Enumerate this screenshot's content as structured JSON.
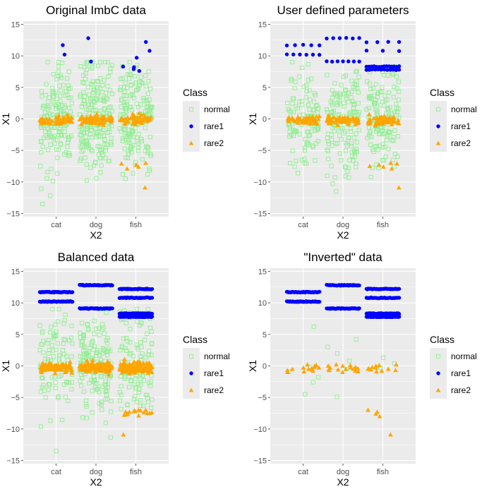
{
  "colors": {
    "normal": "#90ee90",
    "rare1": "#0000ff",
    "rare2": "#ffa500",
    "panel_bg": "#ebebeb",
    "grid": "#ffffff"
  },
  "chart_data": [
    {
      "type": "scatter",
      "title": "Original ImbC data",
      "xlabel": "X2",
      "ylabel": "X1",
      "categories": [
        "cat",
        "dog",
        "fish"
      ],
      "yticks": [
        -15,
        -10,
        -5,
        0,
        5,
        10,
        15
      ],
      "ylim": [
        -15.5,
        15.5
      ],
      "legend": {
        "title": "Class",
        "items": [
          "normal",
          "rare1",
          "rare2"
        ],
        "position": "right"
      },
      "series": [
        {
          "name": "normal",
          "marker": "open-square",
          "spec": {
            "cat": {
              "n": 160,
              "mean": 0,
              "sd": 4.4,
              "min": -13.5,
              "max": 9
            },
            "dog": {
              "n": 200,
              "mean": 0,
              "sd": 4.5,
              "min": -11.5,
              "max": 9
            },
            "fish": {
              "n": 170,
              "mean": 0,
              "sd": 4.2,
              "min": -9.5,
              "max": 9
            }
          }
        },
        {
          "name": "rare1",
          "marker": "circle",
          "points": {
            "cat": [
              11.7,
              10.2
            ],
            "dog": [
              12.8,
              9.1
            ],
            "fish": [
              12.2,
              8.3,
              7.6,
              7.9,
              9.7,
              10.8,
              8.2
            ]
          }
        },
        {
          "name": "rare2",
          "marker": "triangle",
          "spec": {
            "cat": {
              "n": 60,
              "mean": -0.2,
              "sd": 0.35
            },
            "dog": {
              "n": 80,
              "mean": -0.2,
              "sd": 0.35
            },
            "fish": {
              "n": 60,
              "mean": -0.2,
              "sd": 0.4
            }
          },
          "extra": {
            "fish": [
              -7.0,
              -7.6,
              -7.9,
              -7.3,
              -7.1,
              -10.9
            ]
          }
        }
      ]
    },
    {
      "type": "scatter",
      "title": "User defined parameters",
      "xlabel": "X2",
      "ylabel": "X1",
      "categories": [
        "cat",
        "dog",
        "fish"
      ],
      "yticks": [
        -15,
        -10,
        -5,
        0,
        5,
        10,
        15
      ],
      "ylim": [
        -15.5,
        15.5
      ],
      "legend": {
        "title": "Class",
        "items": [
          "normal",
          "rare1",
          "rare2"
        ],
        "position": "right"
      },
      "series": [
        {
          "name": "normal",
          "marker": "open-square",
          "spec": {
            "cat": {
              "n": 110,
              "mean": 0,
              "sd": 4.0,
              "min": -13.5,
              "max": 9
            },
            "dog": {
              "n": 150,
              "mean": 0,
              "sd": 4.3,
              "min": -11.5,
              "max": 9
            },
            "fish": {
              "n": 140,
              "mean": 0,
              "sd": 4.0,
              "min": -9.5,
              "max": 9
            }
          }
        },
        {
          "name": "rare1",
          "marker": "circle",
          "rows": {
            "cat": [
              {
                "y": 11.7,
                "n": 5
              },
              {
                "y": 10.2,
                "n": 6
              }
            ],
            "dog": [
              {
                "y": 12.8,
                "n": 6
              },
              {
                "y": 9.1,
                "n": 7
              }
            ],
            "fish": [
              {
                "y": 12.2,
                "n": 4
              },
              {
                "y": 10.8,
                "n": 3
              },
              {
                "y": 8.3,
                "n": 14
              },
              {
                "y": 7.8,
                "n": 12
              }
            ]
          }
        },
        {
          "name": "rare2",
          "marker": "triangle",
          "spec": {
            "cat": {
              "n": 50,
              "mean": -0.2,
              "sd": 0.35
            },
            "dog": {
              "n": 70,
              "mean": -0.2,
              "sd": 0.35
            },
            "fish": {
              "n": 60,
              "mean": -0.2,
              "sd": 0.4
            }
          },
          "extra": {
            "fish": [
              -7.0,
              -7.6,
              -7.9,
              -7.3,
              -7.1,
              -10.9,
              -7.5
            ]
          }
        }
      ]
    },
    {
      "type": "scatter",
      "title": "Balanced data",
      "xlabel": "X2",
      "ylabel": "X1",
      "categories": [
        "cat",
        "dog",
        "fish"
      ],
      "yticks": [
        -15,
        -10,
        -5,
        0,
        5,
        10,
        15
      ],
      "ylim": [
        -15.5,
        15.5
      ],
      "legend": {
        "title": "Class",
        "items": [
          "normal",
          "rare1",
          "rare2"
        ],
        "position": "right"
      },
      "series": [
        {
          "name": "normal",
          "marker": "open-square",
          "spec": {
            "cat": {
              "n": 100,
              "mean": 0,
              "sd": 4.4,
              "min": -13.5,
              "max": 9
            },
            "dog": {
              "n": 150,
              "mean": 0,
              "sd": 4.4,
              "min": -11.5,
              "max": 9
            },
            "fish": {
              "n": 120,
              "mean": 0,
              "sd": 4.2,
              "min": -9.5,
              "max": 9
            }
          }
        },
        {
          "name": "rare1",
          "marker": "circle",
          "rows": {
            "cat": [
              {
                "y": 11.7,
                "n": 40
              },
              {
                "y": 10.2,
                "n": 40
              }
            ],
            "dog": [
              {
                "y": 12.8,
                "n": 40
              },
              {
                "y": 9.1,
                "n": 40
              }
            ],
            "fish": [
              {
                "y": 12.2,
                "n": 40
              },
              {
                "y": 10.8,
                "n": 30
              },
              {
                "y": 8.3,
                "n": 60
              },
              {
                "y": 7.8,
                "n": 60
              }
            ]
          }
        },
        {
          "name": "rare2",
          "marker": "triangle",
          "spec": {
            "cat": {
              "n": 110,
              "mean": -0.2,
              "sd": 0.35
            },
            "dog": {
              "n": 160,
              "mean": -0.2,
              "sd": 0.35
            },
            "fish": {
              "n": 130,
              "mean": -0.2,
              "sd": 0.4
            }
          },
          "extra": {
            "fish": [
              -7.0,
              -7.6,
              -7.9,
              -7.3,
              -7.1,
              -10.9,
              -7.5,
              -7.2,
              -7.4,
              -7.8,
              -7.0,
              -7.6,
              -7.3,
              -7.1,
              -7.5,
              -7.7,
              -7.2,
              -7.4
            ]
          }
        }
      ]
    },
    {
      "type": "scatter",
      "title": "\"Inverted\" data",
      "xlabel": "X2",
      "ylabel": "X1",
      "categories": [
        "cat",
        "dog",
        "fish"
      ],
      "yticks": [
        -15,
        -10,
        -5,
        0,
        5,
        10,
        15
      ],
      "ylim": [
        -15.5,
        15.5
      ],
      "legend": {
        "title": "Class",
        "items": [
          "normal",
          "rare1",
          "rare2"
        ],
        "position": "right"
      },
      "series": [
        {
          "name": "normal",
          "marker": "open-square",
          "points": {
            "cat": [
              6.2,
              -0.9,
              -1.8,
              -2.6,
              -4.5,
              -0.2
            ],
            "dog": [
              4.2,
              3.0,
              2.0,
              0.8,
              -0.5,
              -4.9
            ],
            "fish": [
              1.3,
              0.4,
              -0.3
            ]
          }
        },
        {
          "name": "rare1",
          "marker": "circle",
          "rows": {
            "cat": [
              {
                "y": 11.7,
                "n": 40
              },
              {
                "y": 10.2,
                "n": 40
              }
            ],
            "dog": [
              {
                "y": 12.8,
                "n": 40
              },
              {
                "y": 9.1,
                "n": 40
              }
            ],
            "fish": [
              {
                "y": 12.2,
                "n": 40
              },
              {
                "y": 10.8,
                "n": 30
              },
              {
                "y": 8.3,
                "n": 60
              },
              {
                "y": 7.8,
                "n": 60
              }
            ]
          }
        },
        {
          "name": "rare2",
          "marker": "triangle",
          "points": {
            "cat": [
              0.1,
              -0.5,
              -0.8,
              -0.3,
              0.0,
              -0.6,
              -0.9,
              -0.4,
              -0.7,
              -0.2,
              0.2,
              -0.5,
              -1.0,
              -0.3
            ],
            "dog": [
              0.1,
              -0.5,
              -0.8,
              -0.3,
              0.0,
              -0.6,
              -0.9,
              -0.4,
              -0.7,
              -0.2,
              0.2,
              -0.5,
              -1.0,
              -0.3,
              -0.6,
              0.0
            ],
            "fish": [
              0.1,
              -0.5,
              -0.8,
              -0.3,
              0.0,
              -0.6,
              -0.9,
              -0.4,
              -0.7,
              -0.2,
              0.2,
              -0.5,
              -7.0,
              -7.6,
              -8.0,
              -7.3,
              -10.9
            ]
          }
        }
      ]
    }
  ]
}
